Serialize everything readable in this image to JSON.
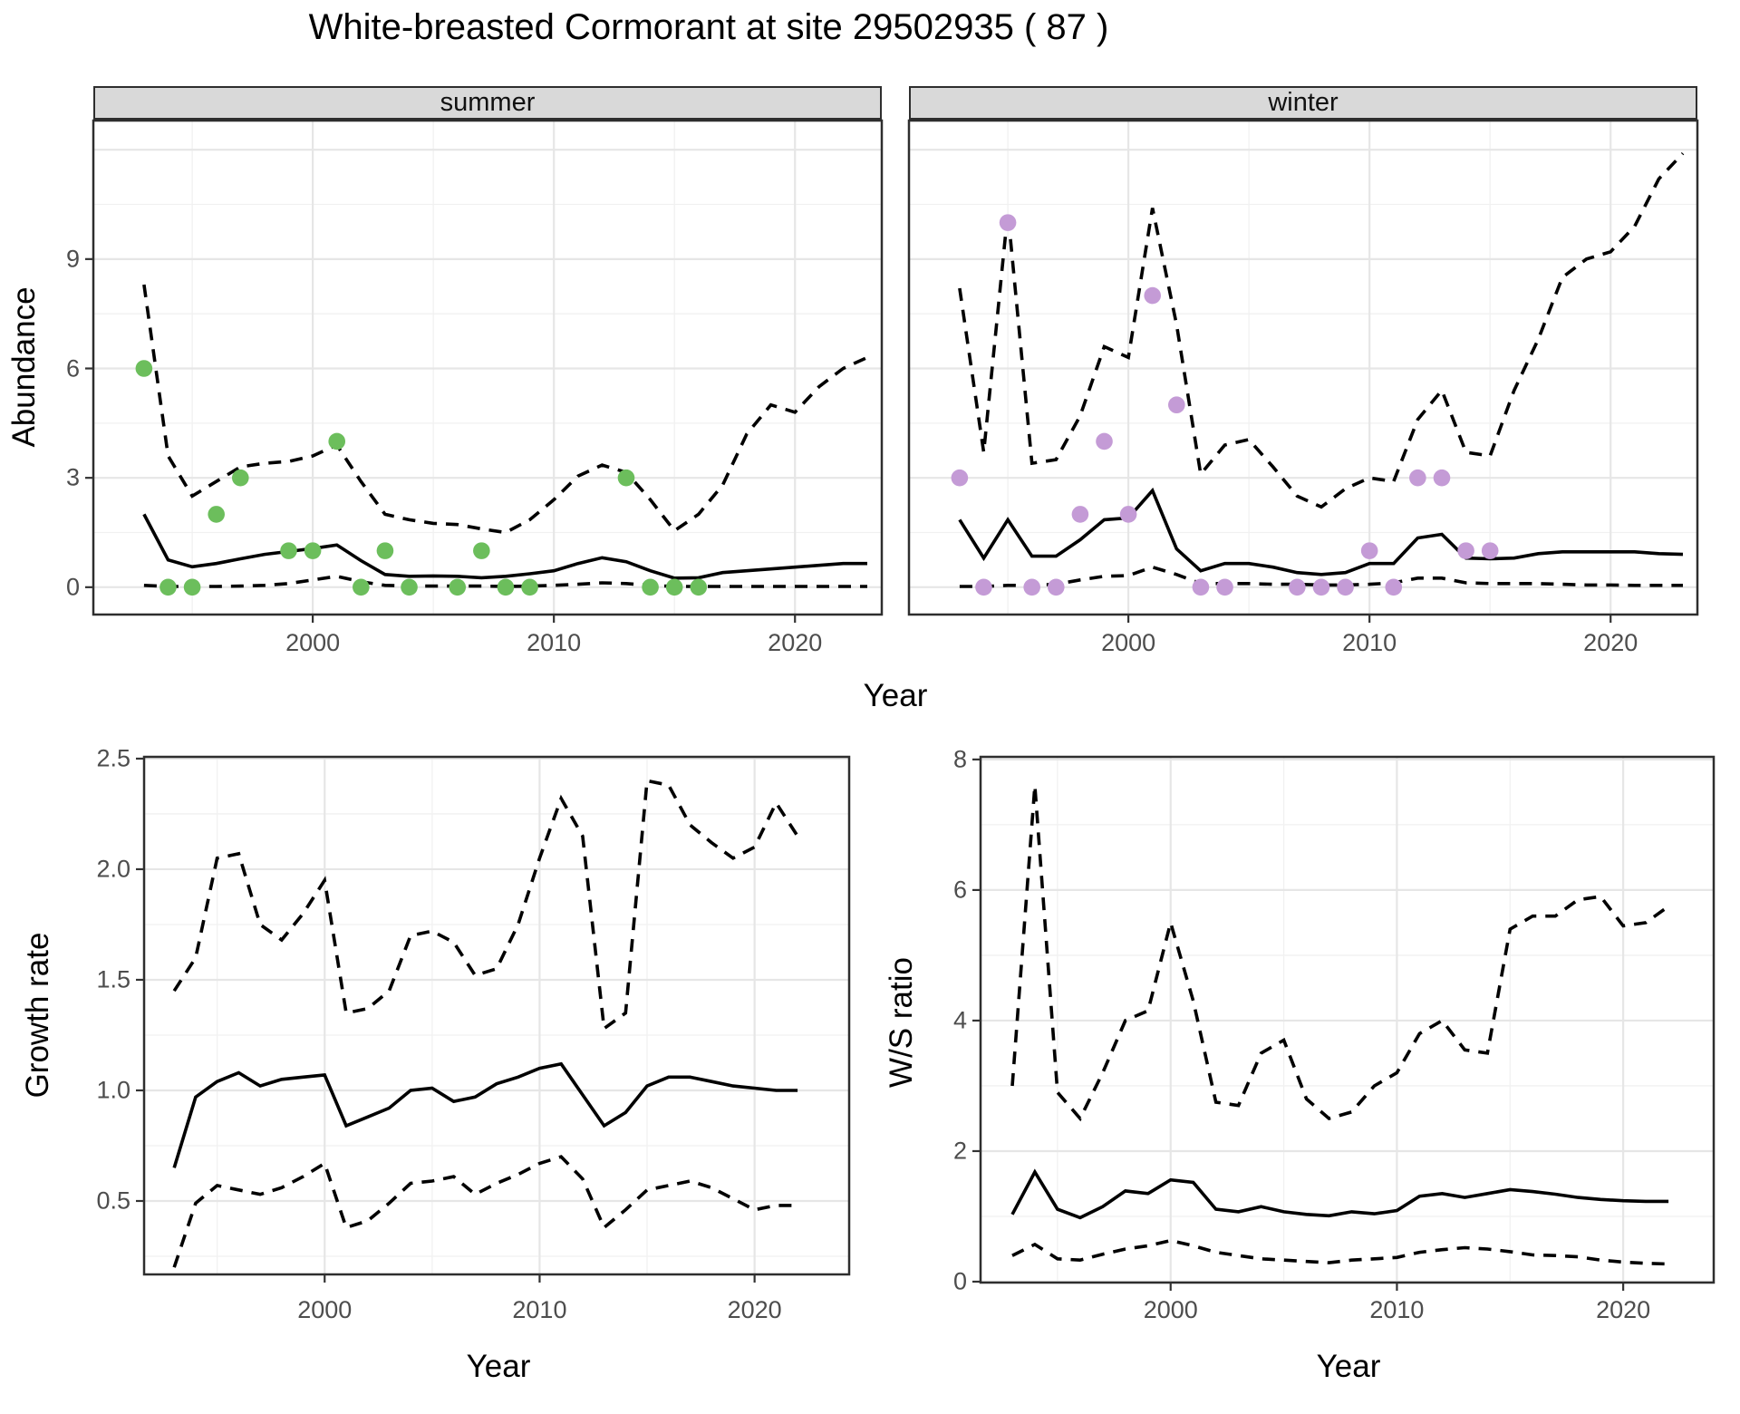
{
  "title": "White-breasted Cormorant at site 29502935 ( 87 )",
  "colors": {
    "summer_point": "#6CBE5C",
    "winter_point": "#C49BD6",
    "line": "#000000",
    "strip_bg": "#D9D9D9",
    "grid_major": "#E6E6E6",
    "grid_minor": "#F1F1F1",
    "panel_border": "#2E2E2E",
    "tick_text": "#4D4D4D"
  },
  "chart_data": [
    {
      "id": "abundance-summer",
      "type": "line",
      "facet": "summer",
      "xlabel": "Year",
      "ylabel": "Abundance",
      "xlim": [
        1990.9,
        2023.6
      ],
      "ylim": [
        -0.75,
        12.8
      ],
      "x_ticks": [
        2000,
        2010,
        2020
      ],
      "x_tick_labels": [
        "2000",
        "2010",
        "2020"
      ],
      "x_grid_minor": [
        1995,
        2005,
        2015
      ],
      "y_ticks": [
        0,
        3,
        6,
        9
      ],
      "y_tick_labels": [
        "0",
        "3",
        "6",
        "9"
      ],
      "y_grid_major": [
        0,
        3,
        6,
        9,
        12
      ],
      "y_grid_minor": [
        1.5,
        4.5,
        7.5,
        10.5
      ],
      "years": [
        1993,
        1994,
        1995,
        1996,
        1997,
        1998,
        1999,
        2000,
        2001,
        2002,
        2003,
        2004,
        2005,
        2006,
        2007,
        2008,
        2009,
        2010,
        2011,
        2012,
        2013,
        2014,
        2015,
        2016,
        2017,
        2018,
        2019,
        2020,
        2021,
        2022,
        2023
      ],
      "series": [
        {
          "name": "upper_95ci",
          "style": "dashed",
          "values": [
            8.3,
            3.6,
            2.5,
            2.9,
            3.3,
            3.4,
            3.45,
            3.6,
            3.9,
            2.9,
            2.0,
            1.85,
            1.75,
            1.72,
            1.6,
            1.5,
            1.85,
            2.4,
            3.05,
            3.35,
            3.15,
            2.4,
            1.55,
            2.0,
            2.8,
            4.2,
            5.0,
            4.8,
            5.5,
            6.0,
            6.3
          ]
        },
        {
          "name": "lower_95ci",
          "style": "dashed",
          "values": [
            0.05,
            0.02,
            0.02,
            0.02,
            0.03,
            0.05,
            0.1,
            0.2,
            0.3,
            0.15,
            0.05,
            0.03,
            0.03,
            0.03,
            0.03,
            0.02,
            0.03,
            0.05,
            0.08,
            0.12,
            0.1,
            0.05,
            0.02,
            0.02,
            0.02,
            0.02,
            0.02,
            0.02,
            0.02,
            0.02,
            0.02
          ]
        },
        {
          "name": "median",
          "style": "solid",
          "values": [
            2.0,
            0.75,
            0.56,
            0.65,
            0.78,
            0.9,
            0.98,
            1.06,
            1.16,
            0.73,
            0.35,
            0.3,
            0.31,
            0.3,
            0.26,
            0.3,
            0.37,
            0.45,
            0.65,
            0.81,
            0.7,
            0.45,
            0.25,
            0.26,
            0.4,
            0.45,
            0.5,
            0.55,
            0.6,
            0.65,
            0.65
          ]
        }
      ],
      "points": {
        "name": "observed_counts",
        "color_key": "summer_point",
        "data": [
          [
            1993,
            6
          ],
          [
            1994,
            0
          ],
          [
            1995,
            0
          ],
          [
            1996,
            2
          ],
          [
            1997,
            3
          ],
          [
            1999,
            1
          ],
          [
            2000,
            1
          ],
          [
            2001,
            4
          ],
          [
            2002,
            0
          ],
          [
            2003,
            1
          ],
          [
            2004,
            0
          ],
          [
            2006,
            0
          ],
          [
            2007,
            1
          ],
          [
            2008,
            0
          ],
          [
            2009,
            0
          ],
          [
            2013,
            3
          ],
          [
            2014,
            0
          ],
          [
            2015,
            0
          ],
          [
            2016,
            0
          ]
        ]
      }
    },
    {
      "id": "abundance-winter",
      "type": "line",
      "facet": "winter",
      "xlabel": "Year",
      "ylabel": "Abundance",
      "xlim": [
        1990.9,
        2023.6
      ],
      "ylim": [
        -0.75,
        12.8
      ],
      "x_ticks": [
        2000,
        2010,
        2020
      ],
      "x_tick_labels": [
        "2000",
        "2010",
        "2020"
      ],
      "x_grid_minor": [
        1995,
        2005,
        2015
      ],
      "y_ticks": [
        0,
        3,
        6,
        9
      ],
      "y_tick_labels": [
        "0",
        "3",
        "6",
        "9"
      ],
      "y_grid_major": [
        0,
        3,
        6,
        9,
        12
      ],
      "y_grid_minor": [
        1.5,
        4.5,
        7.5,
        10.5
      ],
      "years": [
        1993,
        1994,
        1995,
        1996,
        1997,
        1998,
        1999,
        2000,
        2001,
        2002,
        2003,
        2004,
        2005,
        2006,
        2007,
        2008,
        2009,
        2010,
        2011,
        2012,
        2013,
        2014,
        2015,
        2016,
        2017,
        2018,
        2019,
        2020,
        2021,
        2022,
        2023
      ],
      "series": [
        {
          "name": "upper_95ci",
          "style": "dashed",
          "values": [
            8.2,
            3.7,
            10.3,
            3.4,
            3.5,
            4.7,
            6.6,
            6.3,
            10.4,
            7.2,
            3.1,
            3.9,
            4.05,
            3.3,
            2.5,
            2.2,
            2.7,
            3.0,
            2.9,
            4.6,
            5.4,
            3.7,
            3.6,
            5.4,
            6.8,
            8.5,
            9.0,
            9.2,
            9.9,
            11.2,
            11.9
          ]
        },
        {
          "name": "lower_95ci",
          "style": "dashed",
          "values": [
            0.02,
            0.02,
            0.05,
            0.05,
            0.08,
            0.2,
            0.3,
            0.32,
            0.55,
            0.35,
            0.1,
            0.1,
            0.1,
            0.08,
            0.08,
            0.06,
            0.06,
            0.08,
            0.12,
            0.25,
            0.25,
            0.12,
            0.1,
            0.1,
            0.1,
            0.08,
            0.06,
            0.06,
            0.05,
            0.05,
            0.05
          ]
        },
        {
          "name": "median",
          "style": "solid",
          "values": [
            1.85,
            0.8,
            1.85,
            0.85,
            0.85,
            1.3,
            1.85,
            1.9,
            2.65,
            1.05,
            0.45,
            0.65,
            0.65,
            0.55,
            0.4,
            0.35,
            0.4,
            0.65,
            0.65,
            1.35,
            1.45,
            0.8,
            0.78,
            0.8,
            0.92,
            0.97,
            0.97,
            0.97,
            0.97,
            0.92,
            0.9
          ]
        }
      ],
      "points": {
        "name": "observed_counts",
        "color_key": "winter_point",
        "data": [
          [
            1993,
            3
          ],
          [
            1994,
            0
          ],
          [
            1995,
            10
          ],
          [
            1996,
            0
          ],
          [
            1997,
            0
          ],
          [
            1998,
            2
          ],
          [
            1999,
            4
          ],
          [
            2000,
            2
          ],
          [
            2001,
            8
          ],
          [
            2002,
            5
          ],
          [
            2003,
            0
          ],
          [
            2004,
            0
          ],
          [
            2007,
            0
          ],
          [
            2008,
            0
          ],
          [
            2009,
            0
          ],
          [
            2010,
            1
          ],
          [
            2011,
            0
          ],
          [
            2012,
            3
          ],
          [
            2013,
            3
          ],
          [
            2014,
            1
          ],
          [
            2015,
            1
          ]
        ]
      }
    },
    {
      "id": "growth-rate",
      "type": "line",
      "facet": null,
      "xlabel": "Year",
      "ylabel": "Growth rate",
      "xlim": [
        1991.6,
        2024.4
      ],
      "ylim": [
        0.168,
        2.508
      ],
      "x_ticks": [
        2000,
        2010,
        2020
      ],
      "x_tick_labels": [
        "2000",
        "2010",
        "2020"
      ],
      "x_grid_minor": [
        1995,
        2005,
        2015
      ],
      "y_ticks": [
        0.5,
        1.0,
        1.5,
        2.0,
        2.5
      ],
      "y_tick_labels": [
        "0.5",
        "1.0",
        "1.5",
        "2.0",
        "2.5"
      ],
      "y_grid_major": [
        0.5,
        1.0,
        1.5,
        2.0,
        2.5
      ],
      "y_grid_minor": [
        0.25,
        0.75,
        1.25,
        1.75,
        2.25
      ],
      "years": [
        1993,
        1994,
        1995,
        1996,
        1997,
        1998,
        1999,
        2000,
        2001,
        2002,
        2003,
        2004,
        2005,
        2006,
        2007,
        2008,
        2009,
        2010,
        2011,
        2012,
        2013,
        2014,
        2015,
        2016,
        2017,
        2018,
        2019,
        2020,
        2021,
        2022
      ],
      "series": [
        {
          "name": "upper_95ci",
          "style": "dashed",
          "values": [
            1.45,
            1.6,
            2.05,
            2.07,
            1.75,
            1.68,
            1.8,
            1.95,
            1.35,
            1.37,
            1.45,
            1.7,
            1.72,
            1.67,
            1.52,
            1.55,
            1.75,
            2.05,
            2.32,
            2.15,
            1.28,
            1.35,
            2.4,
            2.38,
            2.2,
            2.12,
            2.05,
            2.1,
            2.3,
            2.15
          ]
        },
        {
          "name": "lower_95ci",
          "style": "dashed",
          "values": [
            0.2,
            0.49,
            0.57,
            0.55,
            0.53,
            0.56,
            0.61,
            0.67,
            0.38,
            0.41,
            0.49,
            0.58,
            0.59,
            0.61,
            0.53,
            0.58,
            0.62,
            0.67,
            0.7,
            0.6,
            0.38,
            0.46,
            0.55,
            0.57,
            0.59,
            0.56,
            0.51,
            0.46,
            0.48,
            0.48
          ]
        },
        {
          "name": "median",
          "style": "solid",
          "values": [
            0.65,
            0.97,
            1.04,
            1.08,
            1.02,
            1.05,
            1.06,
            1.07,
            0.84,
            0.88,
            0.92,
            1.0,
            1.01,
            0.95,
            0.97,
            1.03,
            1.06,
            1.1,
            1.12,
            0.98,
            0.84,
            0.9,
            1.02,
            1.06,
            1.06,
            1.04,
            1.02,
            1.01,
            1.0,
            1.0
          ]
        }
      ],
      "points": null
    },
    {
      "id": "ws-ratio",
      "type": "line",
      "facet": null,
      "xlabel": "Year",
      "ylabel": "W/S ratio",
      "xlim": [
        1991.6,
        2024.0
      ],
      "ylim": [
        -0.014,
        8.04
      ],
      "x_ticks": [
        2000,
        2010,
        2020
      ],
      "x_tick_labels": [
        "2000",
        "2010",
        "2020"
      ],
      "x_grid_minor": [
        1995,
        2005,
        2015
      ],
      "y_ticks": [
        0,
        2,
        4,
        6,
        8
      ],
      "y_tick_labels": [
        "0",
        "2",
        "4",
        "6",
        "8"
      ],
      "y_grid_major": [
        0,
        2,
        4,
        6,
        8
      ],
      "y_grid_minor": [
        1,
        3,
        5,
        7
      ],
      "years": [
        1993,
        1994,
        1995,
        1996,
        1997,
        1998,
        1999,
        2000,
        2001,
        2002,
        2003,
        2004,
        2005,
        2006,
        2007,
        2008,
        2009,
        2010,
        2011,
        2012,
        2013,
        2014,
        2015,
        2016,
        2017,
        2018,
        2019,
        2020,
        2021,
        2022
      ],
      "series": [
        {
          "name": "upper_95ci",
          "style": "dashed",
          "values": [
            3.0,
            7.6,
            2.9,
            2.5,
            3.2,
            4.0,
            4.15,
            5.5,
            4.3,
            2.75,
            2.7,
            3.5,
            3.7,
            2.8,
            2.5,
            2.6,
            3.0,
            3.2,
            3.8,
            4.0,
            3.55,
            3.5,
            5.4,
            5.6,
            5.6,
            5.85,
            5.9,
            5.45,
            5.5,
            5.75
          ]
        },
        {
          "name": "lower_95ci",
          "style": "dashed",
          "values": [
            0.4,
            0.57,
            0.35,
            0.33,
            0.42,
            0.5,
            0.55,
            0.63,
            0.55,
            0.45,
            0.4,
            0.35,
            0.33,
            0.31,
            0.29,
            0.33,
            0.35,
            0.37,
            0.45,
            0.49,
            0.52,
            0.5,
            0.46,
            0.41,
            0.4,
            0.38,
            0.33,
            0.3,
            0.28,
            0.27
          ]
        },
        {
          "name": "median",
          "style": "solid",
          "values": [
            1.03,
            1.68,
            1.11,
            0.98,
            1.15,
            1.39,
            1.35,
            1.56,
            1.52,
            1.11,
            1.07,
            1.15,
            1.07,
            1.03,
            1.01,
            1.07,
            1.04,
            1.09,
            1.31,
            1.35,
            1.29,
            1.35,
            1.41,
            1.38,
            1.34,
            1.29,
            1.26,
            1.24,
            1.23,
            1.23
          ]
        }
      ],
      "points": null
    }
  ]
}
